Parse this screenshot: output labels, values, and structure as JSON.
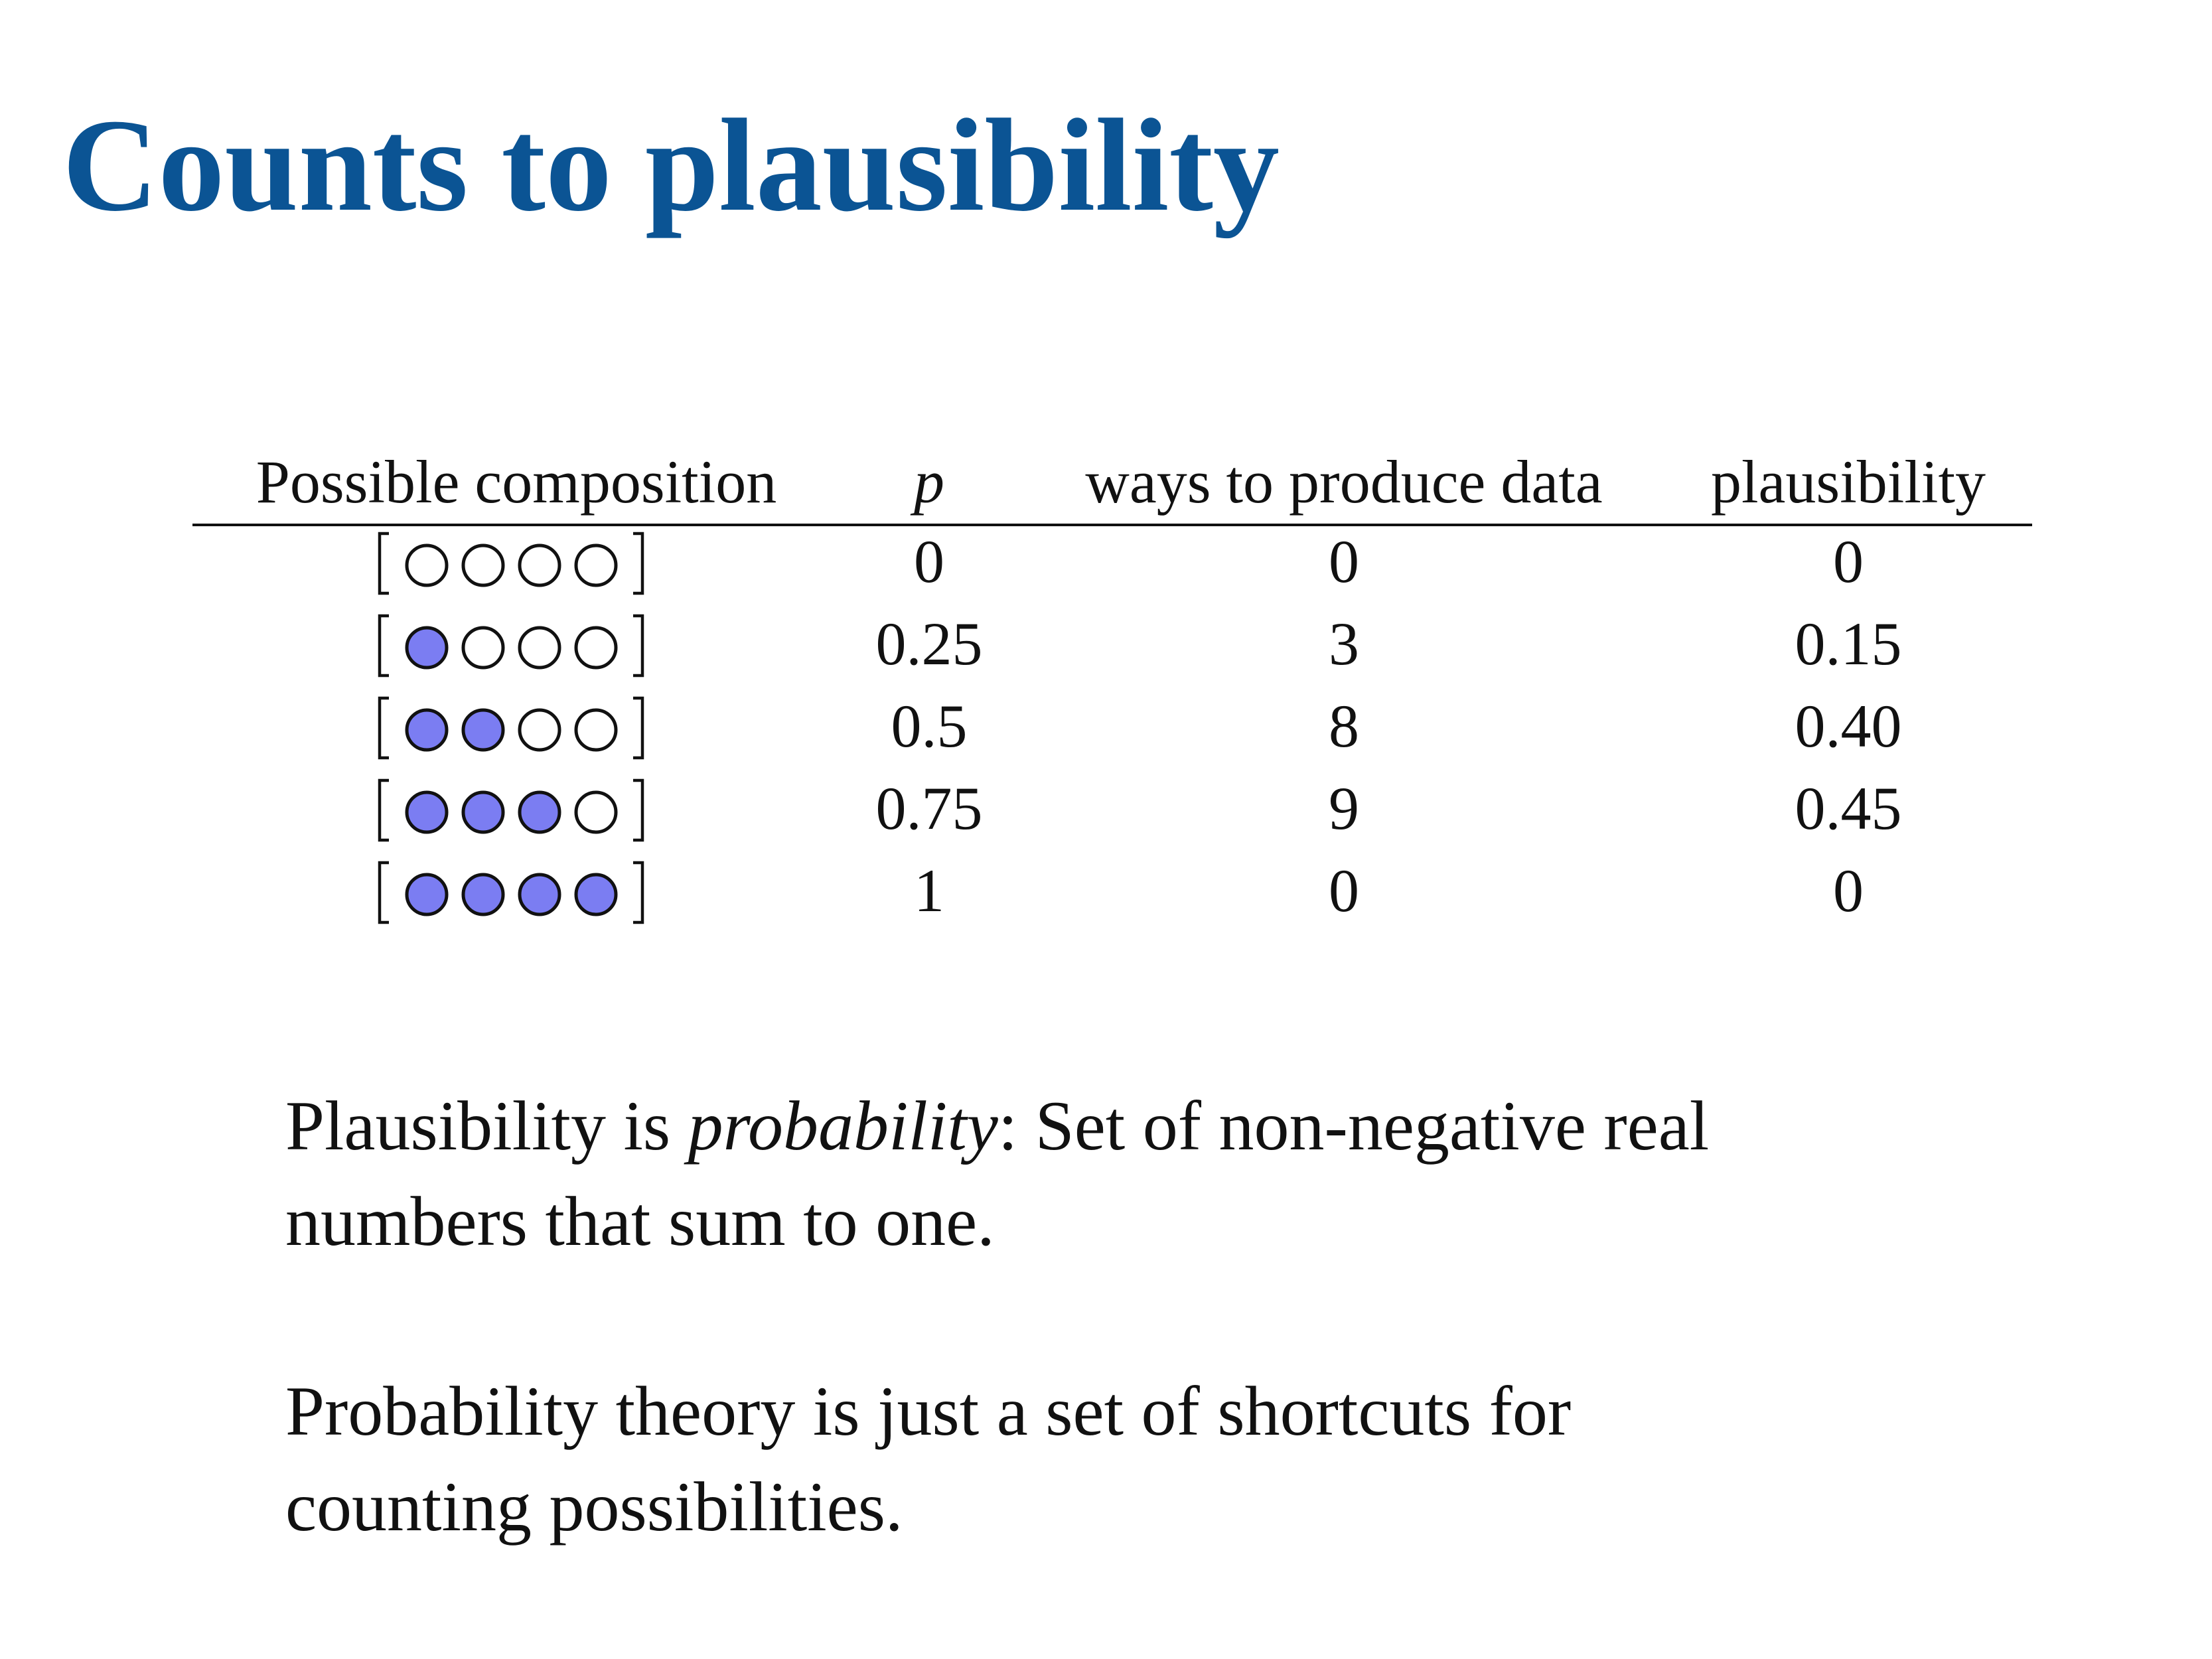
{
  "title": "Counts to plausibility",
  "table": {
    "headers": {
      "composition": "Possible composition",
      "p": "p",
      "ways": "ways to produce data",
      "plausibility": "plausibility"
    },
    "rows": [
      {
        "marbles": [
          "white",
          "white",
          "white",
          "white"
        ],
        "p": "0",
        "ways": "0",
        "plausibility": "0"
      },
      {
        "marbles": [
          "blue",
          "white",
          "white",
          "white"
        ],
        "p": "0.25",
        "ways": "3",
        "plausibility": "0.15"
      },
      {
        "marbles": [
          "blue",
          "blue",
          "white",
          "white"
        ],
        "p": "0.5",
        "ways": "8",
        "plausibility": "0.40"
      },
      {
        "marbles": [
          "blue",
          "blue",
          "blue",
          "white"
        ],
        "p": "0.75",
        "ways": "9",
        "plausibility": "0.45"
      },
      {
        "marbles": [
          "blue",
          "blue",
          "blue",
          "blue"
        ],
        "p": "1",
        "ways": "0",
        "plausibility": "0"
      }
    ]
  },
  "colors": {
    "title": "#0b5494",
    "blue_marble": "#7b7df2",
    "white_marble": "#ffffff",
    "outline": "#111111"
  },
  "paragraph1": {
    "before": "Plausibility is ",
    "emphasis": "probability",
    "after_line1": ": Set of non-negative real",
    "line2": "numbers that sum to one."
  },
  "paragraph2": {
    "line1": "Probability theory is just a set of shortcuts for",
    "line2": "counting possibilities."
  }
}
